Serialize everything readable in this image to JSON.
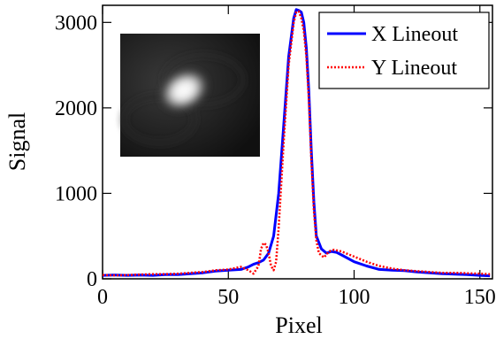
{
  "chart_data": {
    "type": "line",
    "xlabel": "Pixel",
    "ylabel": "Signal",
    "xlim": [
      0,
      155
    ],
    "ylim": [
      0,
      3200
    ],
    "x_ticks": [
      0,
      50,
      100,
      150
    ],
    "y_ticks": [
      0,
      1000,
      2000,
      3000
    ],
    "x_tick_labels": [
      "0",
      "50",
      "100",
      "150"
    ],
    "y_tick_labels": [
      "0",
      "1000",
      "2000",
      "3000"
    ],
    "grid": false,
    "legend_position": "top-right",
    "inset": "grayscale beam image (bright elliptical spot) in upper-left",
    "series": [
      {
        "name": "X Lineout",
        "color": "#0000ff",
        "style": "solid",
        "points": [
          [
            0,
            40
          ],
          [
            5,
            45
          ],
          [
            10,
            40
          ],
          [
            15,
            45
          ],
          [
            20,
            40
          ],
          [
            25,
            50
          ],
          [
            30,
            50
          ],
          [
            35,
            60
          ],
          [
            40,
            70
          ],
          [
            45,
            90
          ],
          [
            50,
            100
          ],
          [
            55,
            110
          ],
          [
            58,
            140
          ],
          [
            60,
            170
          ],
          [
            62,
            190
          ],
          [
            64,
            220
          ],
          [
            66,
            300
          ],
          [
            68,
            500
          ],
          [
            70,
            1000
          ],
          [
            72,
            1800
          ],
          [
            74,
            2600
          ],
          [
            76,
            3050
          ],
          [
            77,
            3150
          ],
          [
            78,
            3140
          ],
          [
            79,
            3120
          ],
          [
            80,
            3000
          ],
          [
            81,
            2700
          ],
          [
            82,
            2200
          ],
          [
            83,
            1500
          ],
          [
            84,
            900
          ],
          [
            85,
            500
          ],
          [
            87,
            350
          ],
          [
            89,
            300
          ],
          [
            91,
            320
          ],
          [
            93,
            310
          ],
          [
            95,
            280
          ],
          [
            100,
            200
          ],
          [
            105,
            150
          ],
          [
            110,
            110
          ],
          [
            115,
            100
          ],
          [
            120,
            95
          ],
          [
            125,
            80
          ],
          [
            130,
            70
          ],
          [
            135,
            60
          ],
          [
            140,
            55
          ],
          [
            145,
            50
          ],
          [
            150,
            40
          ],
          [
            154,
            35
          ]
        ]
      },
      {
        "name": "Y Lineout",
        "color": "#ff0000",
        "style": "dotted",
        "points": [
          [
            0,
            45
          ],
          [
            5,
            40
          ],
          [
            10,
            45
          ],
          [
            15,
            50
          ],
          [
            20,
            55
          ],
          [
            25,
            55
          ],
          [
            30,
            60
          ],
          [
            35,
            70
          ],
          [
            40,
            80
          ],
          [
            45,
            100
          ],
          [
            50,
            110
          ],
          [
            55,
            140
          ],
          [
            58,
            100
          ],
          [
            60,
            60
          ],
          [
            62,
            150
          ],
          [
            63,
            350
          ],
          [
            64,
            420
          ],
          [
            65,
            400
          ],
          [
            66,
            300
          ],
          [
            67,
            150
          ],
          [
            68,
            100
          ],
          [
            69,
            200
          ],
          [
            70,
            600
          ],
          [
            72,
            1600
          ],
          [
            74,
            2500
          ],
          [
            76,
            3000
          ],
          [
            77,
            3120
          ],
          [
            78,
            3130
          ],
          [
            79,
            3050
          ],
          [
            80,
            2900
          ],
          [
            81,
            2600
          ],
          [
            82,
            2100
          ],
          [
            83,
            1400
          ],
          [
            84,
            800
          ],
          [
            85,
            450
          ],
          [
            86,
            300
          ],
          [
            88,
            250
          ],
          [
            90,
            320
          ],
          [
            92,
            340
          ],
          [
            95,
            320
          ],
          [
            100,
            260
          ],
          [
            105,
            200
          ],
          [
            110,
            150
          ],
          [
            115,
            120
          ],
          [
            120,
            100
          ],
          [
            125,
            90
          ],
          [
            130,
            80
          ],
          [
            135,
            70
          ],
          [
            140,
            70
          ],
          [
            145,
            65
          ],
          [
            150,
            60
          ],
          [
            154,
            55
          ]
        ]
      }
    ]
  }
}
